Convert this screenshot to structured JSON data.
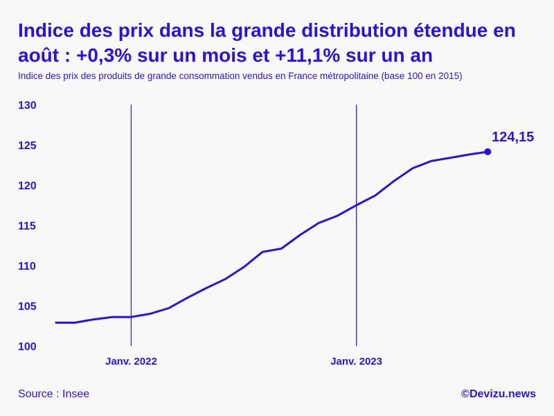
{
  "header": {
    "title": "Indice des prix dans la grande distribution étendue en août : +0,3% sur un mois et +11,1% sur un an",
    "subtitle": "Indice des prix des produits de grande consommation vendus en France métropolitaine (base 100 en 2015)"
  },
  "footer": {
    "source": "Source : Insee",
    "brand": "©Devizu.news"
  },
  "colors": {
    "accent": "#2a10e8",
    "background": "#f8f8f8"
  },
  "chart_data": {
    "type": "line",
    "title": "Indice des prix dans la grande distribution étendue en août : +0,3% sur un mois et +11,1% sur un an",
    "subtitle": "Indice des prix des produits de grande consommation vendus en France métropolitaine (base 100 en 2015)",
    "xlabel": "",
    "ylabel": "",
    "ylim": [
      100,
      130
    ],
    "yticks": [
      100,
      105,
      110,
      115,
      120,
      125,
      130
    ],
    "ytick_labels": [
      "100",
      "105",
      "110",
      "115",
      "120",
      "125",
      "130"
    ],
    "xticks": [
      {
        "x": "2022-01",
        "label": "Janv. 2022"
      },
      {
        "x": "2023-01",
        "label": "Janv. 2023"
      }
    ],
    "grid": "vertical lines at January",
    "legend": "none",
    "end_label": "124,15",
    "series": [
      {
        "x": [
          "2021-09",
          "2021-10",
          "2021-11",
          "2021-12",
          "2022-01",
          "2022-02",
          "2022-03",
          "2022-04",
          "2022-05",
          "2022-06",
          "2022-07",
          "2022-08",
          "2022-09",
          "2022-10",
          "2022-11",
          "2022-12",
          "2023-01",
          "2023-02",
          "2023-03",
          "2023-04",
          "2023-05",
          "2023-06",
          "2023-07",
          "2023-08"
        ],
        "values": [
          102.9,
          102.9,
          103.3,
          103.6,
          103.6,
          104.0,
          104.7,
          106.0,
          107.2,
          108.3,
          109.8,
          111.7,
          112.1,
          113.8,
          115.3,
          116.2,
          117.5,
          118.7,
          120.5,
          122.1,
          123.0,
          123.4,
          123.8,
          124.15
        ]
      }
    ]
  }
}
